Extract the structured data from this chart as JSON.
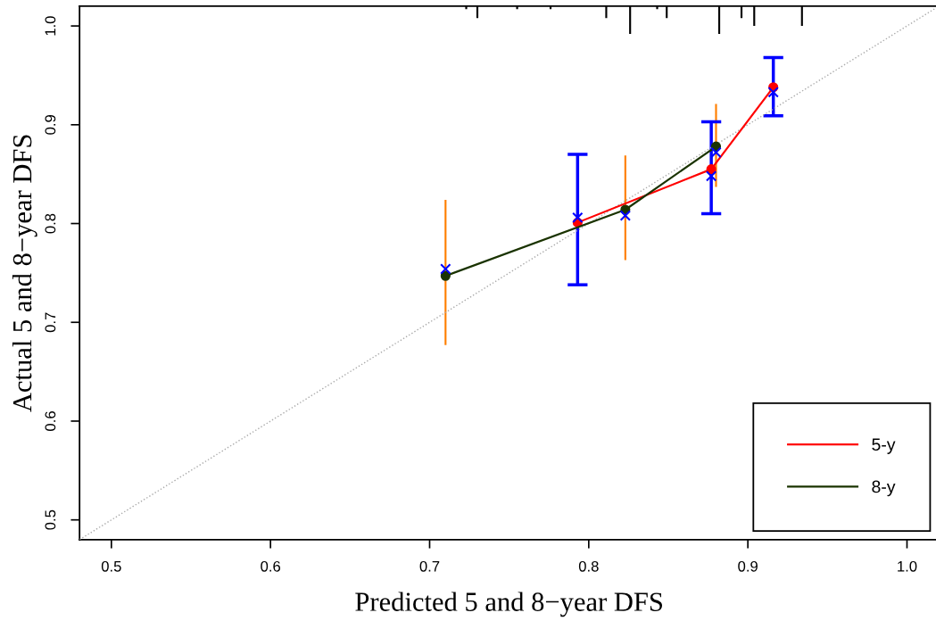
{
  "chart_data": {
    "type": "line",
    "xlabel": "Predicted 5 and 8−year DFS",
    "ylabel": "Actual 5 and 8−year DFS",
    "xlim": [
      0.48,
      1.02
    ],
    "ylim": [
      0.48,
      1.02
    ],
    "xticks": [
      0.5,
      0.6,
      0.7,
      0.8,
      0.9,
      {
        "value": 1.0,
        "label": "1.0"
      }
    ],
    "yticks": [
      0.5,
      0.6,
      0.7,
      0.8,
      0.9,
      {
        "value": 1.0,
        "label": "1.0"
      }
    ],
    "grid": false,
    "legend": "bottom right",
    "series": [
      {
        "type": "line",
        "color": "#aaaaaa",
        "line_style": "dotted",
        "marker": "none",
        "x": [
          0.48,
          1.02
        ],
        "values": [
          0.48,
          1.02
        ]
      },
      {
        "type": "bar",
        "color": "#000000",
        "x": [
          0.723,
          0.73,
          0.755,
          0.776,
          0.811,
          0.826,
          0.843,
          0.849,
          0.882,
          0.896,
          0.904,
          0.934
        ],
        "base": [
          1.02,
          1.02,
          1.02,
          1.02,
          1.02,
          1.02,
          1.02,
          1.02,
          1.02,
          1.02,
          1.02,
          1.02
        ],
        "values": [
          -0.003,
          -0.012,
          -0.003,
          -0.003,
          -0.012,
          -0.028,
          -0.003,
          -0.012,
          -0.028,
          -0.012,
          -0.02,
          -0.02
        ]
      },
      {
        "name": "5-y",
        "color": "#ff0000",
        "marker": "circle",
        "x": [
          0.793,
          0.877,
          0.916
        ],
        "values": [
          0.801,
          0.855,
          0.938
        ]
      },
      {
        "type": "bar",
        "color": "#ff7f00",
        "x": [
          0.71,
          0.823,
          0.88
        ],
        "base": [
          0.677,
          0.763,
          0.837
        ],
        "values": [
          0.147,
          0.106,
          0.084
        ]
      },
      {
        "name": "8-y",
        "color": "#1a3300",
        "marker": "circle",
        "x": [
          0.71,
          0.823,
          0.88
        ],
        "values": [
          0.747,
          0.814,
          0.878
        ]
      },
      {
        "type": "scatter",
        "color": "#0000ff",
        "marker": "cross",
        "x": [
          0.793,
          0.877,
          0.916
        ],
        "values": [
          0.806,
          0.848,
          0.933
        ],
        "errors": [
          [
            0.738,
            0.87
          ],
          [
            0.81,
            0.903
          ],
          [
            0.909,
            0.968
          ]
        ]
      },
      {
        "type": "scatter",
        "color": "#0000ff",
        "marker": "cross",
        "x": [
          0.71,
          0.823,
          0.88
        ],
        "values": [
          0.754,
          0.808,
          0.872
        ]
      }
    ]
  }
}
